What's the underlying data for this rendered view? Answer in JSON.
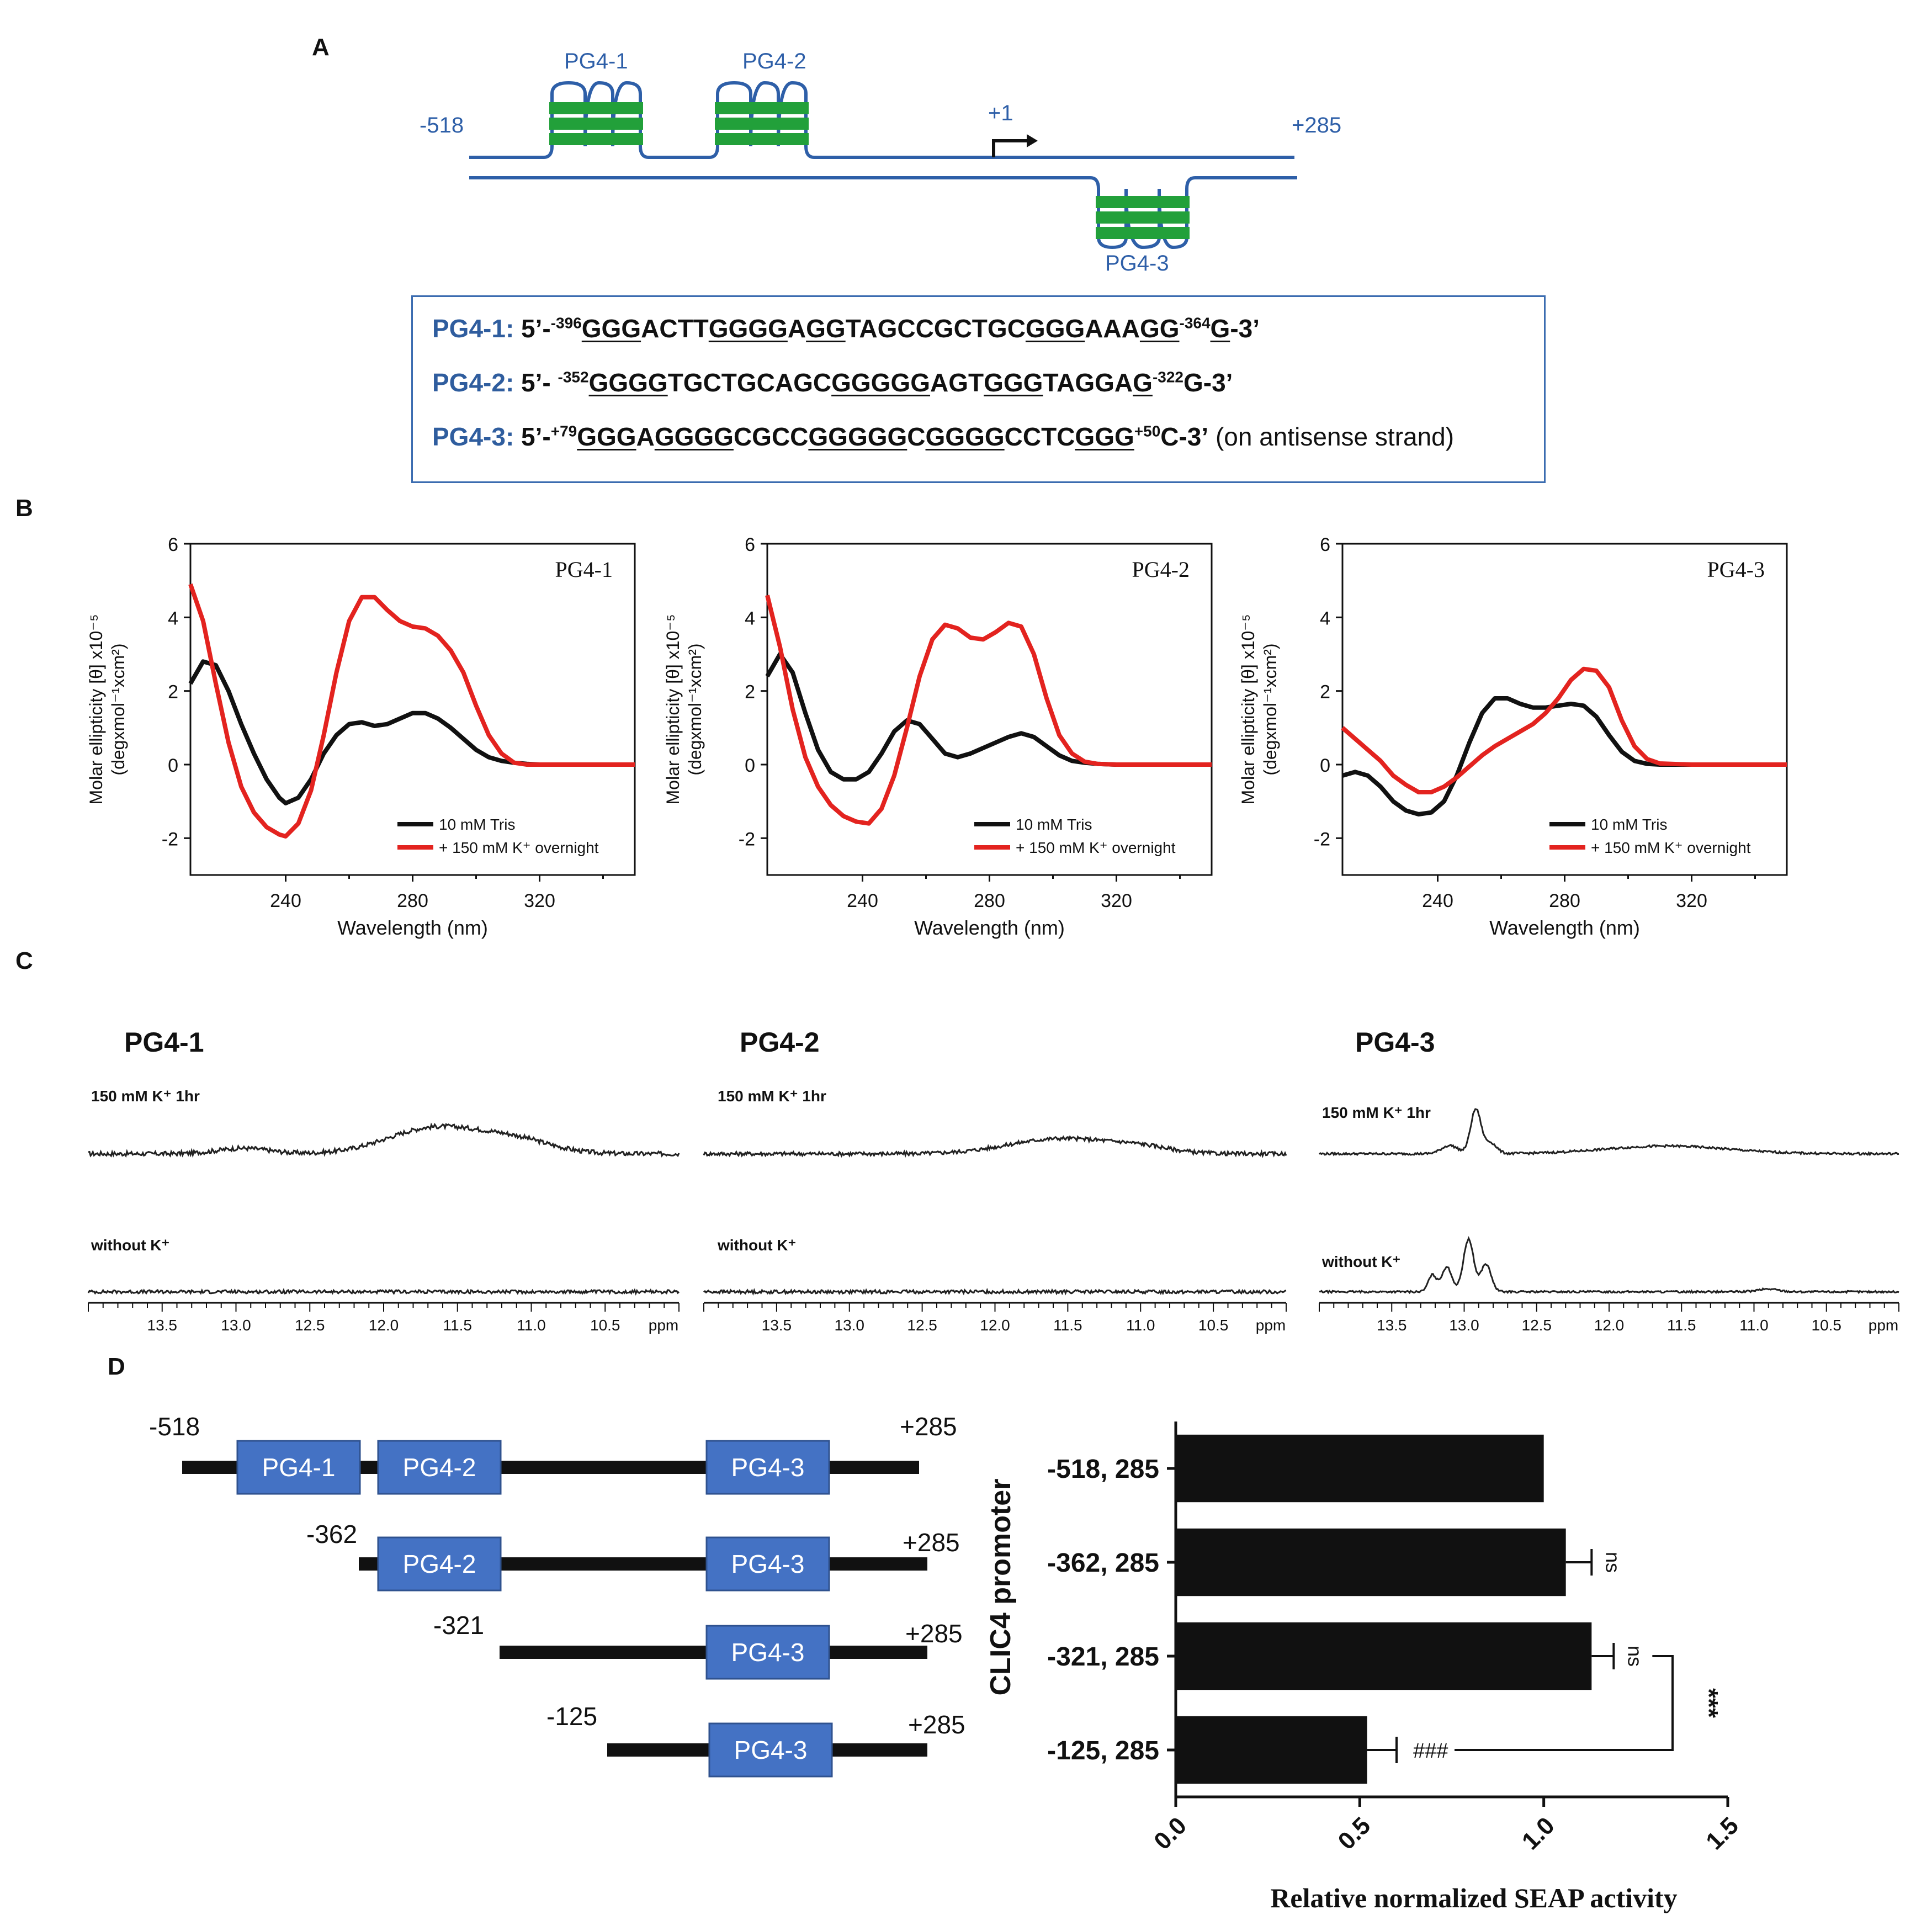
{
  "panels": {
    "a": "A",
    "b": "B",
    "c": "C",
    "d": "D"
  },
  "panel_a": {
    "left_end": "-518",
    "right_end": "+285",
    "tss": "+1",
    "g4_labels": [
      "PG4-1",
      "PG4-2",
      "PG4-3"
    ],
    "colors": {
      "strand": "#2e5fa8",
      "quadruplex": "#22a03a"
    },
    "sequences": [
      {
        "name": "PG4-1:",
        "parts": [
          {
            "t": "5’-"
          },
          {
            "t": "-396",
            "sup": true
          },
          {
            "t": "GGG",
            "u": true
          },
          {
            "t": "ACTT"
          },
          {
            "t": "GGGG",
            "u": true
          },
          {
            "t": "A"
          },
          {
            "t": "GG",
            "u": true
          },
          {
            "t": "TAGCCGCTGC"
          },
          {
            "t": "GGG",
            "u": true
          },
          {
            "t": "AAA"
          },
          {
            "t": "GG",
            "u": true
          },
          {
            "t": "-364",
            "sup": true
          },
          {
            "t": "G",
            "u": true
          },
          {
            "t": "-3’"
          }
        ]
      },
      {
        "name": "PG4-2:",
        "parts": [
          {
            "t": "5’- "
          },
          {
            "t": "-352",
            "sup": true
          },
          {
            "t": "GGGG",
            "u": true
          },
          {
            "t": "TGCTGCAGC"
          },
          {
            "t": "GGGGG",
            "u": true
          },
          {
            "t": "AGT"
          },
          {
            "t": "GGG",
            "u": true
          },
          {
            "t": "TAGGA"
          },
          {
            "t": "G",
            "u": true
          },
          {
            "t": "-322",
            "sup": true
          },
          {
            "t": "G-3’"
          }
        ]
      },
      {
        "name": "PG4-3:",
        "parts": [
          {
            "t": "5’-"
          },
          {
            "t": "+79",
            "sup": true
          },
          {
            "t": "GGG",
            "u": true
          },
          {
            "t": "A"
          },
          {
            "t": "GGGG",
            "u": true
          },
          {
            "t": "CGCC"
          },
          {
            "t": "GGGGG",
            "u": true
          },
          {
            "t": "C"
          },
          {
            "t": "GGGG",
            "u": true
          },
          {
            "t": "CCTC"
          },
          {
            "t": "GGG",
            "u": true
          },
          {
            "t": "+50",
            "sup": true
          },
          {
            "t": "C-3’"
          },
          {
            "t": " (on antisense strand)",
            "normal": true
          }
        ]
      }
    ]
  },
  "chart_data": [
    {
      "type": "line",
      "panel": "B",
      "title": "PG4-1",
      "xlabel": "Wavelength (nm)",
      "ylabel": "Molar ellipticity [θ] x10⁻⁵",
      "ylabel2": "(degxmol⁻¹xcm²)",
      "xlim": [
        210,
        350
      ],
      "ylim": [
        -3,
        6
      ],
      "xticks": [
        240,
        280,
        320
      ],
      "yticks": [
        -2,
        0,
        2,
        4,
        6
      ],
      "legend_position": "bottom-right",
      "series": [
        {
          "name": "10 mM Tris",
          "color": "#111111",
          "x": [
            210,
            214,
            218,
            222,
            226,
            230,
            234,
            238,
            240,
            244,
            248,
            252,
            256,
            260,
            264,
            268,
            272,
            276,
            280,
            284,
            288,
            292,
            296,
            300,
            304,
            308,
            312,
            316,
            320,
            330,
            350
          ],
          "y": [
            2.2,
            2.8,
            2.7,
            2.0,
            1.1,
            0.3,
            -0.4,
            -0.9,
            -1.05,
            -0.9,
            -0.4,
            0.3,
            0.8,
            1.1,
            1.15,
            1.05,
            1.1,
            1.25,
            1.4,
            1.4,
            1.25,
            1.0,
            0.7,
            0.4,
            0.2,
            0.1,
            0.05,
            0.02,
            0.0,
            0.0,
            0.0
          ]
        },
        {
          "name": "+ 150 mM K⁺ overnight",
          "color": "#e3231f",
          "x": [
            210,
            214,
            218,
            222,
            226,
            230,
            234,
            238,
            240,
            244,
            248,
            252,
            256,
            260,
            264,
            268,
            272,
            276,
            280,
            284,
            288,
            292,
            296,
            300,
            304,
            308,
            312,
            316,
            320,
            330,
            350
          ],
          "y": [
            4.9,
            3.9,
            2.2,
            0.6,
            -0.6,
            -1.3,
            -1.7,
            -1.9,
            -1.95,
            -1.6,
            -0.7,
            0.8,
            2.5,
            3.9,
            4.55,
            4.55,
            4.2,
            3.9,
            3.75,
            3.7,
            3.5,
            3.1,
            2.5,
            1.6,
            0.8,
            0.3,
            0.05,
            0.0,
            0.0,
            0.0,
            0.0
          ]
        }
      ]
    },
    {
      "type": "line",
      "panel": "B",
      "title": "PG4-2",
      "xlabel": "Wavelength (nm)",
      "ylabel": "Molar ellipticity [θ] x10⁻⁵",
      "ylabel2": "(degxmol⁻¹xcm²)",
      "xlim": [
        210,
        350
      ],
      "ylim": [
        -3,
        6
      ],
      "xticks": [
        240,
        280,
        320
      ],
      "yticks": [
        -2,
        0,
        2,
        4,
        6
      ],
      "legend_position": "bottom-right",
      "series": [
        {
          "name": "10 mM Tris",
          "color": "#111111",
          "x": [
            210,
            214,
            218,
            222,
            226,
            230,
            234,
            238,
            242,
            246,
            250,
            254,
            258,
            262,
            266,
            270,
            274,
            278,
            282,
            286,
            290,
            294,
            298,
            302,
            306,
            310,
            314,
            320,
            330,
            350
          ],
          "y": [
            2.4,
            3.0,
            2.5,
            1.4,
            0.4,
            -0.2,
            -0.4,
            -0.4,
            -0.2,
            0.3,
            0.9,
            1.2,
            1.1,
            0.7,
            0.3,
            0.2,
            0.3,
            0.45,
            0.6,
            0.75,
            0.85,
            0.75,
            0.5,
            0.25,
            0.1,
            0.05,
            0.02,
            0.0,
            0.0,
            0.0
          ]
        },
        {
          "name": "+ 150 mM K⁺ overnight",
          "color": "#e3231f",
          "x": [
            210,
            214,
            218,
            222,
            226,
            230,
            234,
            238,
            242,
            246,
            250,
            254,
            258,
            262,
            266,
            270,
            274,
            278,
            282,
            286,
            290,
            294,
            298,
            302,
            306,
            310,
            314,
            320,
            330,
            350
          ],
          "y": [
            4.6,
            3.2,
            1.5,
            0.2,
            -0.6,
            -1.1,
            -1.4,
            -1.55,
            -1.6,
            -1.2,
            -0.3,
            1.0,
            2.4,
            3.4,
            3.8,
            3.7,
            3.45,
            3.4,
            3.6,
            3.85,
            3.75,
            3.0,
            1.8,
            0.8,
            0.3,
            0.08,
            0.02,
            0.0,
            0.0,
            0.0
          ]
        }
      ]
    },
    {
      "type": "line",
      "panel": "B",
      "title": "PG4-3",
      "xlabel": "Wavelength (nm)",
      "ylabel": "Molar ellipticity [θ] x10⁻⁵",
      "ylabel2": "(degxmol⁻¹xcm²)",
      "xlim": [
        210,
        350
      ],
      "ylim": [
        -3,
        6
      ],
      "xticks": [
        240,
        280,
        320
      ],
      "yticks": [
        -2,
        0,
        2,
        4,
        6
      ],
      "legend_position": "bottom-right",
      "series": [
        {
          "name": "10 mM Tris",
          "color": "#111111",
          "x": [
            210,
            214,
            218,
            222,
            226,
            230,
            234,
            238,
            242,
            246,
            250,
            254,
            258,
            262,
            266,
            270,
            274,
            278,
            282,
            286,
            290,
            294,
            298,
            302,
            306,
            310,
            320,
            330,
            350
          ],
          "y": [
            -0.3,
            -0.2,
            -0.3,
            -0.6,
            -1.0,
            -1.25,
            -1.35,
            -1.3,
            -1.0,
            -0.3,
            0.6,
            1.4,
            1.8,
            1.8,
            1.65,
            1.55,
            1.55,
            1.6,
            1.65,
            1.6,
            1.3,
            0.8,
            0.35,
            0.1,
            0.02,
            0.0,
            0.0,
            0.0,
            0.0
          ]
        },
        {
          "name": "+ 150 mM K⁺ overnight",
          "color": "#e3231f",
          "x": [
            210,
            214,
            218,
            222,
            226,
            230,
            234,
            238,
            242,
            246,
            250,
            254,
            258,
            262,
            266,
            270,
            274,
            278,
            282,
            286,
            290,
            294,
            298,
            302,
            306,
            310,
            320,
            330,
            350
          ],
          "y": [
            1.0,
            0.7,
            0.4,
            0.1,
            -0.3,
            -0.55,
            -0.75,
            -0.75,
            -0.6,
            -0.35,
            -0.05,
            0.25,
            0.5,
            0.7,
            0.9,
            1.1,
            1.4,
            1.8,
            2.3,
            2.6,
            2.55,
            2.1,
            1.2,
            0.5,
            0.15,
            0.03,
            0.0,
            0.0,
            0.0
          ]
        }
      ]
    },
    {
      "type": "line",
      "panel": "C",
      "title": "PG4-1",
      "xlabel": "ppm",
      "xlim": [
        14.0,
        10.0
      ],
      "x_reversed": true,
      "xticks": [
        13.5,
        13.0,
        12.5,
        12.0,
        11.5,
        11.0,
        10.5
      ],
      "series": [
        {
          "name": "150 mM K⁺ 1hr",
          "color": "#222222",
          "peaks": [
            {
              "center": 12.95,
              "height": 0.2,
              "width": 0.25
            },
            {
              "center": 11.65,
              "height": 0.95,
              "width": 0.45
            },
            {
              "center": 11.1,
              "height": 0.45,
              "width": 0.35
            }
          ],
          "noise": 0.08
        },
        {
          "name": "without K⁺",
          "color": "#222222",
          "peaks": [],
          "noise": 0.06
        }
      ]
    },
    {
      "type": "line",
      "panel": "C",
      "title": "PG4-2",
      "xlabel": "ppm",
      "xlim": [
        14.0,
        10.0
      ],
      "x_reversed": true,
      "xticks": [
        13.5,
        13.0,
        12.5,
        12.0,
        11.5,
        11.0,
        10.5
      ],
      "series": [
        {
          "name": "150 mM K⁺ 1hr",
          "color": "#222222",
          "peaks": [
            {
              "center": 11.55,
              "height": 0.55,
              "width": 0.5
            },
            {
              "center": 11.0,
              "height": 0.2,
              "width": 0.3
            }
          ],
          "noise": 0.07
        },
        {
          "name": "without K⁺",
          "color": "#222222",
          "peaks": [],
          "noise": 0.06
        }
      ]
    },
    {
      "type": "line",
      "panel": "C",
      "title": "PG4-3",
      "xlabel": "ppm",
      "xlim": [
        14.0,
        10.0
      ],
      "x_reversed": true,
      "xticks": [
        13.5,
        13.0,
        12.5,
        12.0,
        11.5,
        11.0,
        10.5
      ],
      "series": [
        {
          "name": "150 mM K⁺ 1hr",
          "color": "#222222",
          "peaks": [
            {
              "center": 12.92,
              "height": 1.6,
              "width": 0.05
            },
            {
              "center": 13.1,
              "height": 0.3,
              "width": 0.08
            },
            {
              "center": 12.82,
              "height": 0.4,
              "width": 0.06
            },
            {
              "center": 11.6,
              "height": 0.28,
              "width": 0.6
            }
          ],
          "noise": 0.04
        },
        {
          "name": "without K⁺",
          "color": "#222222",
          "peaks": [
            {
              "center": 12.97,
              "height": 1.9,
              "width": 0.05
            },
            {
              "center": 13.12,
              "height": 0.9,
              "width": 0.05
            },
            {
              "center": 13.22,
              "height": 0.6,
              "width": 0.04
            },
            {
              "center": 12.85,
              "height": 1.0,
              "width": 0.05
            },
            {
              "center": 10.9,
              "height": 0.1,
              "width": 0.1
            }
          ],
          "noise": 0.035
        }
      ]
    },
    {
      "type": "bar",
      "panel": "D",
      "orientation": "horizontal",
      "categories": [
        "-518, 285",
        "-362, 285",
        "-321, 285",
        "-125, 285"
      ],
      "values": [
        1.0,
        1.06,
        1.13,
        0.52
      ],
      "errors": [
        0.0,
        0.07,
        0.06,
        0.08
      ],
      "annotations": [
        "",
        "ns",
        "ns",
        "###"
      ],
      "bracket": {
        "from": "-321, 285",
        "to": "-125, 285",
        "label": "***"
      },
      "xlabel": "Relative normalized SEAP activity",
      "ylabel": "CLIC4 promoter",
      "xlim": [
        0,
        1.5
      ],
      "xticks": [
        "0.0",
        "0.5",
        "1.0",
        "1.5"
      ]
    }
  ],
  "constructs": [
    {
      "start": "-518",
      "end": "+285",
      "boxes": [
        "PG4-1",
        "PG4-2",
        "PG4-3"
      ]
    },
    {
      "start": "-362",
      "end": "+285",
      "boxes": [
        "PG4-2",
        "PG4-3"
      ]
    },
    {
      "start": "-321",
      "end": "+285",
      "boxes": [
        "PG4-3"
      ]
    },
    {
      "start": "-125",
      "end": "+285",
      "boxes": [
        "PG4-3"
      ]
    }
  ],
  "colors": {
    "box_fill": "#4472c4",
    "red": "#e3231f",
    "black": "#111111"
  }
}
